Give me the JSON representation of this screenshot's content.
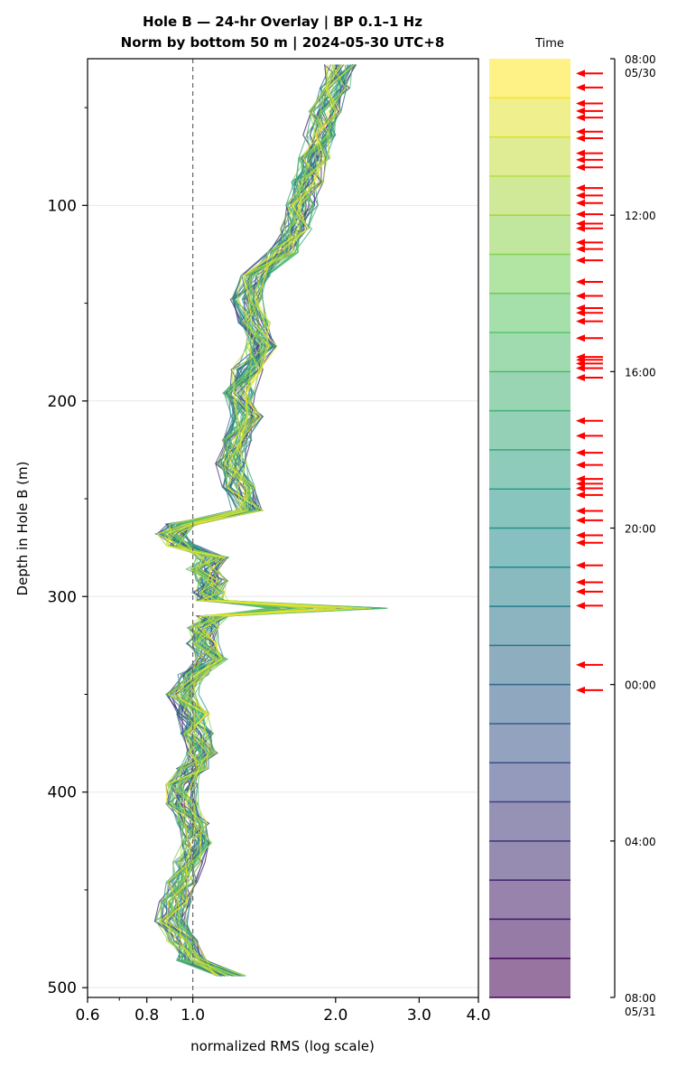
{
  "chart_data": {
    "type": "line",
    "title_line1": "Hole B — 24-hr Overlay  |  BP 0.1–1 Hz",
    "title_line2": "Norm by bottom 50 m  |  2024-05-30 UTC+8",
    "xlabel": "normalized RMS  (log scale)",
    "ylabel": "Depth in Hole B (m)",
    "x_scale": "log",
    "xlim": [
      0.6,
      4.0
    ],
    "ylim": [
      505,
      25
    ],
    "x_ticks": [
      "0.6",
      "0.8",
      "1.0",
      "2.0",
      "3.0",
      "4.0"
    ],
    "x_tick_values": [
      0.6,
      0.8,
      1.0,
      2.0,
      3.0,
      4.0
    ],
    "y_ticks": [
      "100",
      "200",
      "300",
      "400",
      "500"
    ],
    "y_tick_values": [
      100,
      200,
      300,
      400,
      500
    ],
    "reference_line_x": 1.0,
    "depths": [
      28,
      40,
      52,
      64,
      76,
      88,
      100,
      112,
      124,
      136,
      148,
      160,
      172,
      184,
      196,
      208,
      220,
      232,
      244,
      256,
      263,
      268,
      274,
      280,
      286,
      292,
      298,
      302,
      306,
      310,
      316,
      324,
      332,
      340,
      350,
      360,
      370,
      380,
      388,
      396,
      406,
      416,
      426,
      436,
      446,
      456,
      466,
      476,
      486,
      494
    ],
    "median_profile": [
      2.05,
      2.0,
      1.9,
      1.85,
      1.8,
      1.75,
      1.7,
      1.65,
      1.55,
      1.35,
      1.3,
      1.35,
      1.4,
      1.3,
      1.25,
      1.3,
      1.25,
      1.2,
      1.25,
      1.3,
      0.95,
      0.9,
      0.95,
      1.1,
      1.05,
      1.1,
      1.08,
      1.1,
      1.85,
      1.1,
      1.05,
      1.05,
      1.1,
      1.0,
      0.95,
      1.0,
      1.02,
      1.05,
      1.0,
      0.95,
      0.95,
      1.0,
      1.02,
      0.98,
      0.95,
      0.92,
      0.9,
      0.95,
      1.0,
      1.2
    ],
    "series_count": 48,
    "colormap": "viridis",
    "colors": {
      "reference_line": "#666666",
      "arrow": "#ff0000",
      "grid": "#e8e8e8"
    },
    "colorbar": {
      "label": "Time",
      "tick_labels": [
        "08:00\n05/30",
        "12:00",
        "16:00",
        "20:00",
        "00:00",
        "04:00",
        "08:00\n05/31"
      ],
      "tick_fracs": [
        0,
        0.16667,
        0.33333,
        0.5,
        0.66667,
        0.83333,
        1.0
      ],
      "bands": 24,
      "arrow_fracs": [
        0.008,
        0.023,
        0.04,
        0.048,
        0.055,
        0.07,
        0.077,
        0.093,
        0.1,
        0.108,
        0.13,
        0.138,
        0.146,
        0.158,
        0.168,
        0.173,
        0.188,
        0.195,
        0.207,
        0.23,
        0.245,
        0.258,
        0.263,
        0.272,
        0.29,
        0.31,
        0.313,
        0.317,
        0.322,
        0.332,
        0.378,
        0.394,
        0.412,
        0.425,
        0.44,
        0.445,
        0.45,
        0.457,
        0.474,
        0.484,
        0.5,
        0.508,
        0.532,
        0.55,
        0.56,
        0.575,
        0.638,
        0.665
      ]
    }
  }
}
